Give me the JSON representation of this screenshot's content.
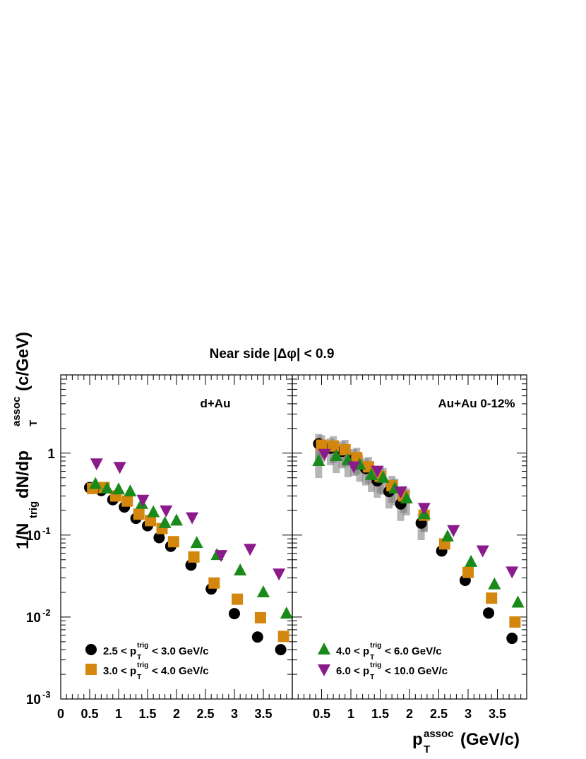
{
  "title": "Near side |Δφ| < 0.9",
  "ylabel": {
    "a": "1/N",
    "a_sub": "trig",
    "b": " dN/dp",
    "b_sup": "assoc",
    "b_sub": "T",
    "c": " (c/GeV)"
  },
  "xlabel": {
    "a": "p",
    "sup": "assoc",
    "sub": "T",
    "b": " (GeV/c)"
  },
  "colors": {
    "black": "#000000",
    "orange": "#d4870f",
    "green": "#1a8a1a",
    "purple": "#8b1a8b",
    "grey_sys": "#7a7a7a"
  },
  "chart_data": [
    {
      "type": "scatter",
      "panel_label": "d+Au",
      "xlim": [
        0,
        4.0
      ],
      "ylim": [
        0.001,
        9
      ],
      "yscale": "log",
      "x_ticks": [
        "0",
        "0.5",
        "1",
        "1.5",
        "2",
        "2.5",
        "3",
        "3.5"
      ],
      "y_ticks": [
        {
          "base": "10",
          "exp": "-3"
        },
        {
          "base": "10",
          "exp": "-2"
        },
        {
          "base": "10",
          "exp": "-1"
        },
        {
          "base": "1",
          "exp": ""
        }
      ],
      "legend": [
        {
          "lo": "2.5 < p",
          "sup": "trig",
          "sub": "T",
          "hi": " < 3.0 GeV/c",
          "series": 0
        },
        {
          "lo": "3.0 < p",
          "sup": "trig",
          "sub": "T",
          "hi": " < 4.0 GeV/c",
          "series": 1
        }
      ],
      "series": [
        {
          "marker": "circle",
          "color": "#000000",
          "x": [
            0.5,
            0.7,
            0.9,
            1.1,
            1.3,
            1.5,
            1.7,
            1.9,
            2.25,
            2.6,
            3.0,
            3.4,
            3.8
          ],
          "y": [
            0.38,
            0.35,
            0.27,
            0.22,
            0.16,
            0.13,
            0.093,
            0.073,
            0.043,
            0.022,
            0.011,
            0.0057,
            0.004
          ]
        },
        {
          "marker": "square",
          "color": "#d4870f",
          "x": [
            0.55,
            0.75,
            0.95,
            1.15,
            1.35,
            1.55,
            1.75,
            1.95,
            2.3,
            2.65,
            3.05,
            3.45,
            3.85
          ],
          "y": [
            0.37,
            0.38,
            0.3,
            0.26,
            0.18,
            0.15,
            0.12,
            0.083,
            0.054,
            0.026,
            0.0165,
            0.0098,
            0.0058
          ]
        },
        {
          "marker": "triangle-up",
          "color": "#1a8a1a",
          "x": [
            0.6,
            0.8,
            1.0,
            1.2,
            1.4,
            1.6,
            1.8,
            2.0,
            2.35,
            2.7,
            3.1,
            3.5,
            3.9
          ],
          "y": [
            0.42,
            0.37,
            0.36,
            0.34,
            0.24,
            0.19,
            0.14,
            0.15,
            0.08,
            0.057,
            0.037,
            0.02,
            0.011
          ]
        },
        {
          "marker": "triangle-down",
          "color": "#8b1a8b",
          "x": [
            0.62,
            1.02,
            1.42,
            1.82,
            2.27,
            2.77,
            3.27,
            3.77
          ],
          "y": [
            0.75,
            0.68,
            0.27,
            0.2,
            0.165,
            0.057,
            0.068,
            0.034
          ]
        }
      ]
    },
    {
      "type": "scatter",
      "panel_label": "Au+Au 0-12%",
      "xlim": [
        0,
        4.0
      ],
      "ylim": [
        0.001,
        9
      ],
      "yscale": "log",
      "x_ticks": [
        "0.5",
        "1",
        "1.5",
        "2",
        "2.5",
        "3",
        "3.5"
      ],
      "legend": [
        {
          "lo": "4.0 < p",
          "sup": "trig",
          "sub": "T",
          "hi": " < 6.0 GeV/c",
          "series": 2
        },
        {
          "lo": "6.0 < p",
          "sup": "trig",
          "sub": "T",
          "hi": " < 10.0 GeV/c",
          "series": 3
        }
      ],
      "series": [
        {
          "marker": "circle",
          "color": "#000000",
          "x": [
            0.45,
            0.65,
            0.85,
            1.05,
            1.25,
            1.45,
            1.65,
            1.85,
            2.2,
            2.55,
            2.95,
            3.35,
            3.75
          ],
          "y": [
            1.3,
            1.15,
            1.05,
            0.85,
            0.65,
            0.46,
            0.34,
            0.24,
            0.14,
            0.064,
            0.028,
            0.0112,
            0.0055
          ]
        },
        {
          "marker": "square",
          "color": "#d4870f",
          "x": [
            0.5,
            0.7,
            0.9,
            1.1,
            1.3,
            1.5,
            1.7,
            1.9,
            2.25,
            2.6,
            3.0,
            3.4,
            3.8
          ],
          "y": [
            1.25,
            1.22,
            1.1,
            0.88,
            0.68,
            0.52,
            0.4,
            0.3,
            0.175,
            0.078,
            0.035,
            0.017,
            0.0087
          ]
        },
        {
          "marker": "triangle-up",
          "color": "#1a8a1a",
          "x": [
            0.45,
            0.75,
            0.95,
            1.15,
            1.35,
            1.55,
            1.75,
            1.95,
            2.25,
            2.65,
            3.05,
            3.45,
            3.85
          ],
          "y": [
            0.8,
            0.92,
            0.82,
            0.72,
            0.54,
            0.5,
            0.37,
            0.28,
            0.18,
            0.096,
            0.047,
            0.025,
            0.015
          ]
        },
        {
          "marker": "triangle-down",
          "color": "#8b1a8b",
          "x": [
            0.55,
            1.05,
            1.45,
            1.85,
            2.25,
            2.75,
            3.25,
            3.75
          ],
          "y": [
            0.98,
            0.69,
            0.61,
            0.34,
            0.215,
            0.115,
            0.065,
            0.036
          ]
        }
      ]
    }
  ]
}
